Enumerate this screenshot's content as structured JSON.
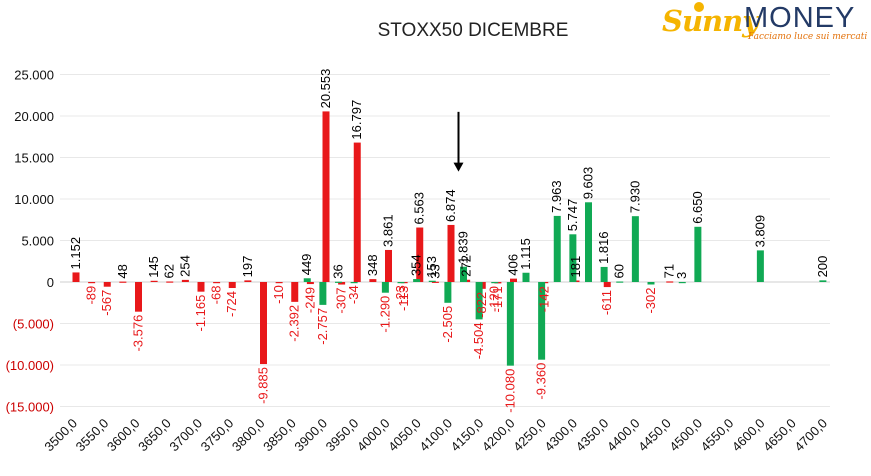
{
  "logo": {
    "word1": "Sunny",
    "word2": "MONEY",
    "tagline": "Facciamo luce sui mercati"
  },
  "chart_data": {
    "type": "bar",
    "title": "STOXX50 DICEMBRE",
    "xlabel": "",
    "ylabel": "",
    "ylim": [
      -15000,
      25000
    ],
    "yticks": [
      25000,
      20000,
      15000,
      10000,
      5000,
      0,
      -5000,
      -10000,
      -15000
    ],
    "ytick_labels": [
      "25.000",
      "20.000",
      "15.000",
      "10.000",
      "5.000",
      "0",
      "(5.000)",
      "(10.000)",
      "(15.000)"
    ],
    "categories": [
      "3500,0",
      "3550,0",
      "3600,0",
      "3650,0",
      "3700,0",
      "3750,0",
      "3800,0",
      "3850,0",
      "3900,0",
      "3950,0",
      "4000,0",
      "4050,0",
      "4100,0",
      "4150,0",
      "4200,0",
      "4250,0",
      "4300,0",
      "4350,0",
      "4400,0",
      "4450,0",
      "4500,0",
      "4550,0",
      "4600,0",
      "4650,0",
      "4700,0"
    ],
    "colors": {
      "red": "#e8181a",
      "green": "#10a954",
      "positive_label": "#000000",
      "negative_label": "#e8181a",
      "axis_label": "#cc0000",
      "grid": "#e8e8e8"
    },
    "series": [
      {
        "color": "red",
        "points": [
          {
            "x": 3500,
            "y": 1152,
            "label": "1.152"
          },
          {
            "x": 3525,
            "y": -89,
            "label": "-89"
          },
          {
            "x": 3550,
            "y": -567,
            "label": "-567"
          },
          {
            "x": 3575,
            "y": 48,
            "label": "48"
          },
          {
            "x": 3600,
            "y": -3576,
            "label": "-3.576"
          },
          {
            "x": 3625,
            "y": 145,
            "label": "145"
          },
          {
            "x": 3650,
            "y": 62,
            "label": "62"
          },
          {
            "x": 3675,
            "y": 254,
            "label": "254"
          },
          {
            "x": 3700,
            "y": -1165,
            "label": "-1.165"
          },
          {
            "x": 3725,
            "y": -68,
            "label": "-68"
          },
          {
            "x": 3750,
            "y": -724,
            "label": "-724"
          },
          {
            "x": 3775,
            "y": 197,
            "label": "197"
          },
          {
            "x": 3800,
            "y": -9885,
            "label": "-9.885"
          },
          {
            "x": 3825,
            "y": -10,
            "label": "-10"
          },
          {
            "x": 3850,
            "y": -2392,
            "label": "-2.392"
          },
          {
            "x": 3875,
            "y": -249,
            "label": "-249"
          },
          {
            "x": 3900,
            "y": 20553,
            "label": "20.553"
          },
          {
            "x": 3925,
            "y": -307,
            "label": "-307"
          },
          {
            "x": 3950,
            "y": 16797,
            "label": "16.797"
          },
          {
            "x": 3975,
            "y": 348,
            "label": "348"
          },
          {
            "x": 4000,
            "y": 3861,
            "label": "3.861"
          },
          {
            "x": 4025,
            "y": -113,
            "label": "-113"
          },
          {
            "x": 4050,
            "y": 6563,
            "label": "6.563"
          },
          {
            "x": 4075,
            "y": 33,
            "label": "33"
          },
          {
            "x": 4100,
            "y": 6874,
            "label": "6.874"
          },
          {
            "x": 4125,
            "y": 272,
            "label": "272"
          },
          {
            "x": 4150,
            "y": -822,
            "label": "-822"
          },
          {
            "x": 4175,
            "y": -171,
            "label": "-171"
          },
          {
            "x": 4200,
            "y": 406,
            "label": "406"
          },
          {
            "x": 4250,
            "y": -142,
            "label": "-142"
          },
          {
            "x": 4300,
            "y": 181,
            "label": "181"
          },
          {
            "x": 4350,
            "y": -611,
            "label": "-611"
          },
          {
            "x": 4450,
            "y": 71,
            "label": "71"
          }
        ]
      },
      {
        "color": "green",
        "points": [
          {
            "x": 3870,
            "y": 449,
            "label": "449"
          },
          {
            "x": 3895,
            "y": -2757,
            "label": "-2.757"
          },
          {
            "x": 3920,
            "y": 36,
            "label": "36"
          },
          {
            "x": 3945,
            "y": -34,
            "label": "-34"
          },
          {
            "x": 3995,
            "y": -1290,
            "label": "-1.290"
          },
          {
            "x": 4020,
            "y": -23,
            "label": "-23"
          },
          {
            "x": 4045,
            "y": 354,
            "label": "354"
          },
          {
            "x": 4070,
            "y": 153,
            "label": "153"
          },
          {
            "x": 4095,
            "y": -2505,
            "label": "-2.505"
          },
          {
            "x": 4120,
            "y": 1839,
            "label": "1.839"
          },
          {
            "x": 4145,
            "y": -4504,
            "label": "-4.504"
          },
          {
            "x": 4170,
            "y": -120,
            "label": "-120"
          },
          {
            "x": 4195,
            "y": -10080,
            "label": "-10.080"
          },
          {
            "x": 4220,
            "y": 1115,
            "label": "1.115"
          },
          {
            "x": 4245,
            "y": -9360,
            "label": "-9.360"
          },
          {
            "x": 4270,
            "y": 7963,
            "label": "7.963"
          },
          {
            "x": 4295,
            "y": 5747,
            "label": "5.747"
          },
          {
            "x": 4320,
            "y": 9603,
            "label": "9.603"
          },
          {
            "x": 4345,
            "y": 1816,
            "label": "1.816"
          },
          {
            "x": 4370,
            "y": 60,
            "label": "60"
          },
          {
            "x": 4395,
            "y": 7930,
            "label": "7.930"
          },
          {
            "x": 4420,
            "y": -302,
            "label": "-302"
          },
          {
            "x": 4470,
            "y": 3,
            "label": "3"
          },
          {
            "x": 4495,
            "y": 6650,
            "label": "6.650"
          },
          {
            "x": 4595,
            "y": 3809,
            "label": "3.809"
          },
          {
            "x": 4695,
            "y": 200,
            "label": "200"
          }
        ]
      }
    ],
    "annotation": {
      "type": "arrow",
      "x": 4112,
      "y_from": 20500,
      "y_to": 13300
    }
  }
}
